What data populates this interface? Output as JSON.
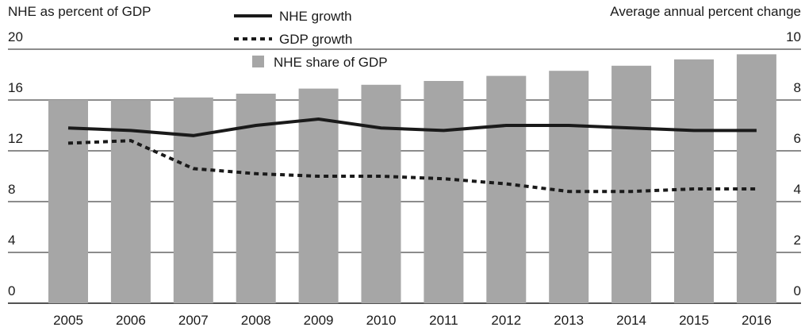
{
  "chart_data": {
    "type": "bar-line",
    "y_axis_label": "NHE as percent of GDP",
    "y2_axis_label": "Average annual percent change",
    "categories": [
      "2005",
      "2006",
      "2007",
      "2008",
      "2009",
      "2010",
      "2011",
      "2012",
      "2013",
      "2014",
      "2015",
      "2016"
    ],
    "series": [
      {
        "name": "NHE growth",
        "type": "line",
        "style": "solid",
        "axis": "y2",
        "color": "#1a1a1a",
        "values": [
          6.9,
          6.8,
          6.6,
          7.0,
          7.25,
          6.9,
          6.8,
          7.0,
          7.0,
          6.9,
          6.8,
          6.8
        ]
      },
      {
        "name": "GDP growth",
        "type": "line",
        "style": "dotted",
        "axis": "y2",
        "color": "#1a1a1a",
        "values": [
          6.3,
          6.4,
          5.3,
          5.1,
          5.0,
          5.0,
          4.9,
          4.7,
          4.4,
          4.4,
          4.5,
          4.5
        ]
      },
      {
        "name": "NHE share of GDP",
        "type": "bar",
        "axis": "y",
        "color": "#a6a6a6",
        "values": [
          16.0,
          16.0,
          16.2,
          16.5,
          16.9,
          17.2,
          17.5,
          17.9,
          18.3,
          18.7,
          19.2,
          19.6
        ]
      }
    ],
    "ylim": [
      0,
      20
    ],
    "yticks": [
      0,
      4,
      8,
      12,
      16,
      20
    ],
    "y2lim": [
      0,
      10
    ],
    "y2ticks": [
      0,
      2,
      4,
      6,
      8,
      10
    ],
    "grid": true
  }
}
